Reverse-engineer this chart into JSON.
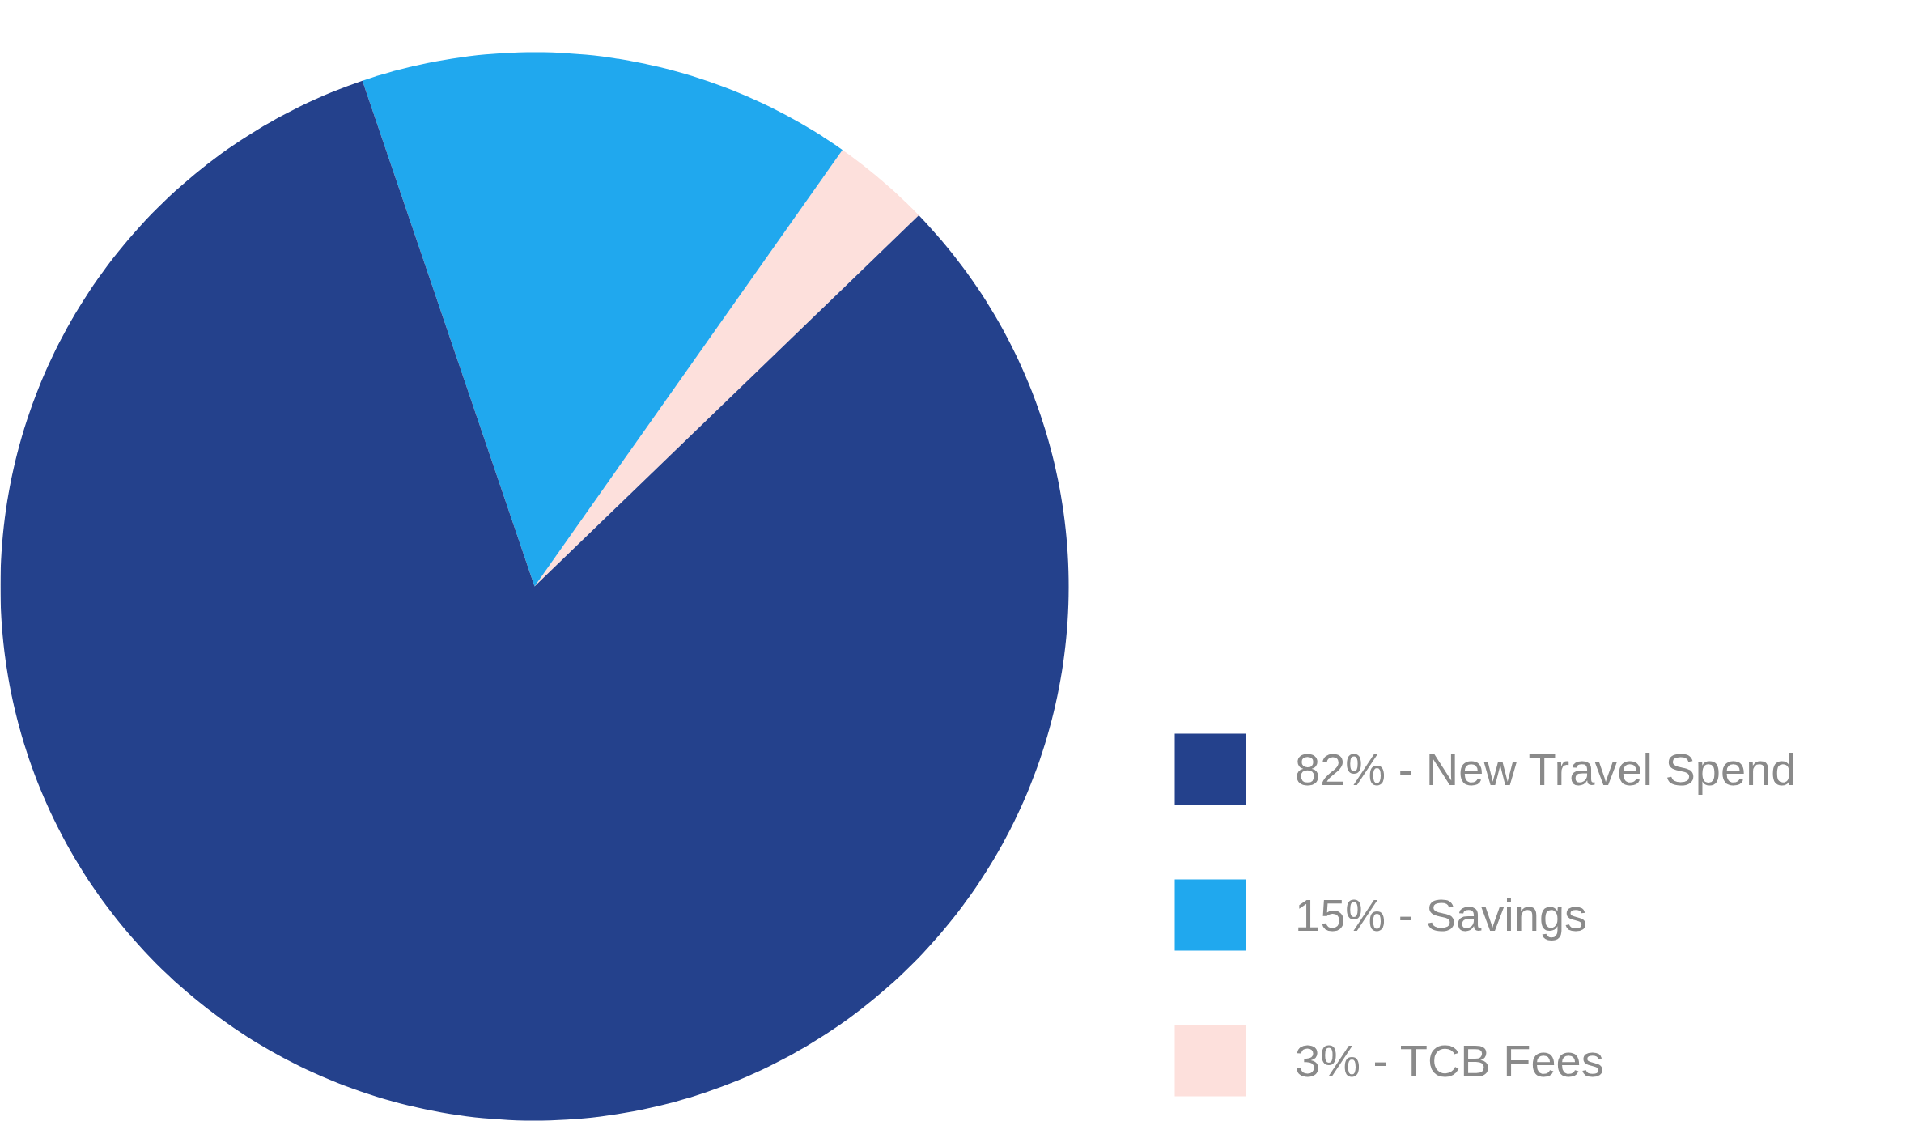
{
  "chart_data": {
    "type": "pie",
    "categories": [
      "82% - New Travel Spend",
      "15% - Savings",
      "3% - TCB Fees"
    ],
    "values": [
      82,
      15,
      3
    ],
    "colors": [
      "#24418c",
      "#20a8ee",
      "#fde0dc"
    ],
    "legend": "bottom right"
  }
}
